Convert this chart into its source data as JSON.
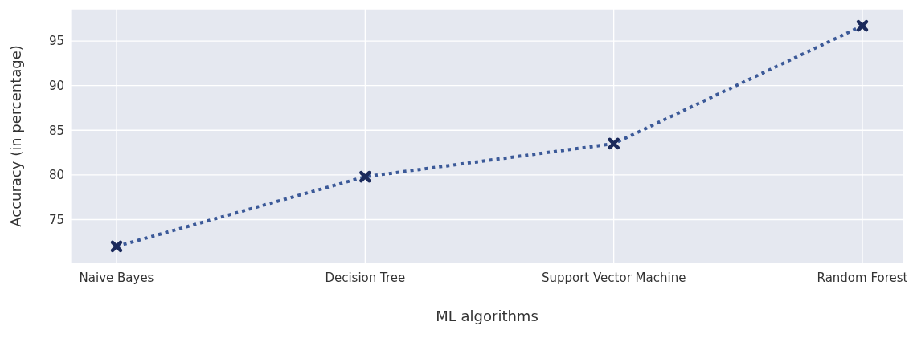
{
  "chart_data": {
    "type": "line",
    "xlabel": "ML algorithms",
    "ylabel": "Accuracy (in percentage)",
    "categories": [
      "Naive Bayes",
      "Decision Tree",
      "Support Vector Machine",
      "Random Forest"
    ],
    "series": [
      {
        "color": "#3b5998",
        "values": [
          72.0,
          79.8,
          83.5,
          96.7
        ]
      }
    ],
    "ylim": [
      70.1,
      98.6
    ],
    "yticks": [
      75,
      80,
      85,
      90,
      95
    ],
    "grid": true,
    "marker": "cross",
    "line_style": "dotted"
  }
}
